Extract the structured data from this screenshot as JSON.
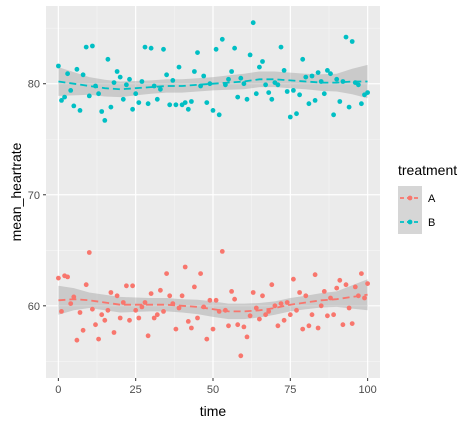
{
  "chart_data": {
    "type": "scatter",
    "title": "",
    "xlabel": "time",
    "ylabel": "mean_heartrate",
    "xlim": [
      -4,
      104
    ],
    "ylim": [
      53.5,
      87
    ],
    "x_ticks": [
      0,
      25,
      50,
      75,
      100
    ],
    "y_ticks": [
      60,
      70,
      80
    ],
    "grid": true,
    "legend": {
      "title": "treatment",
      "position": "right",
      "entries": [
        {
          "label": "A",
          "color": "#F8766D"
        },
        {
          "label": "B",
          "color": "#00BFC4"
        }
      ]
    },
    "series": [
      {
        "name": "A",
        "color": "#F8766D",
        "points": [
          [
            0,
            62.5
          ],
          [
            1,
            59.5
          ],
          [
            2,
            62.7
          ],
          [
            3,
            62.6
          ],
          [
            4,
            60.2
          ],
          [
            5,
            60.8
          ],
          [
            6,
            56.9
          ],
          [
            7,
            59.4
          ],
          [
            8,
            57.8
          ],
          [
            9,
            61.9
          ],
          [
            10,
            64.8
          ],
          [
            11,
            59.7
          ],
          [
            12,
            58.3
          ],
          [
            13,
            57.0
          ],
          [
            14,
            59.2
          ],
          [
            15,
            58.7
          ],
          [
            16,
            59.6
          ],
          [
            17,
            61.2
          ],
          [
            18,
            57.6
          ],
          [
            19,
            60.9
          ],
          [
            20,
            58.9
          ],
          [
            21,
            60.3
          ],
          [
            22,
            61.8
          ],
          [
            23,
            58.7
          ],
          [
            24,
            61.8
          ],
          [
            25,
            59.6
          ],
          [
            26,
            58.9
          ],
          [
            27,
            59.9
          ],
          [
            28,
            60.3
          ],
          [
            29,
            57.3
          ],
          [
            30,
            61.1
          ],
          [
            31,
            58.9
          ],
          [
            32,
            59.2
          ],
          [
            33,
            61.4
          ],
          [
            34,
            59.5
          ],
          [
            35,
            62.9
          ],
          [
            36,
            60.9
          ],
          [
            37,
            60.2
          ],
          [
            38,
            57.9
          ],
          [
            39,
            59.8
          ],
          [
            40,
            60.9
          ],
          [
            41,
            63.5
          ],
          [
            42,
            58.6
          ],
          [
            43,
            58.0
          ],
          [
            44,
            61.7
          ],
          [
            45,
            58.9
          ],
          [
            46,
            62.9
          ],
          [
            47,
            59.9
          ],
          [
            48,
            57.0
          ],
          [
            49,
            60.5
          ],
          [
            50,
            57.9
          ],
          [
            51,
            60.5
          ],
          [
            52,
            59.5
          ],
          [
            53,
            64.9
          ],
          [
            54,
            59.6
          ],
          [
            55,
            58.2
          ],
          [
            56,
            61.3
          ],
          [
            57,
            60.6
          ],
          [
            58,
            58.3
          ],
          [
            59,
            55.5
          ],
          [
            60,
            58.1
          ],
          [
            61,
            57.2
          ],
          [
            62,
            59.1
          ],
          [
            63,
            61.2
          ],
          [
            64,
            59.8
          ],
          [
            65,
            58.8
          ],
          [
            66,
            60.9
          ],
          [
            67,
            59.2
          ],
          [
            68,
            59.5
          ],
          [
            69,
            61.9
          ],
          [
            70,
            60.0
          ],
          [
            71,
            58.2
          ],
          [
            72,
            60.2
          ],
          [
            73,
            58.7
          ],
          [
            74,
            60.3
          ],
          [
            75,
            59.2
          ],
          [
            76,
            62.4
          ],
          [
            77,
            59.6
          ],
          [
            78,
            61.2
          ],
          [
            79,
            57.9
          ],
          [
            80,
            60.9
          ],
          [
            81,
            58.2
          ],
          [
            82,
            59.2
          ],
          [
            83,
            62.8
          ],
          [
            84,
            58.0
          ],
          [
            85,
            60.0
          ],
          [
            86,
            61.3
          ],
          [
            87,
            59.1
          ],
          [
            88,
            60.7
          ],
          [
            89,
            59.2
          ],
          [
            90,
            61.6
          ],
          [
            91,
            62.3
          ],
          [
            92,
            58.3
          ],
          [
            93,
            61.9
          ],
          [
            94,
            59.8
          ],
          [
            95,
            58.4
          ],
          [
            96,
            61.7
          ],
          [
            97,
            60.9
          ],
          [
            98,
            62.9
          ],
          [
            99,
            60.7
          ],
          [
            100,
            62.0
          ]
        ],
        "trend": [
          [
            0,
            60.5
          ],
          [
            5,
            60.6
          ],
          [
            10,
            60.5
          ],
          [
            15,
            60.3
          ],
          [
            20,
            60.1
          ],
          [
            25,
            60.1
          ],
          [
            30,
            60.1
          ],
          [
            35,
            60.1
          ],
          [
            40,
            60.0
          ],
          [
            45,
            59.9
          ],
          [
            50,
            59.7
          ],
          [
            55,
            59.5
          ],
          [
            60,
            59.5
          ],
          [
            65,
            59.6
          ],
          [
            70,
            59.8
          ],
          [
            75,
            60.1
          ],
          [
            80,
            60.3
          ],
          [
            85,
            60.5
          ],
          [
            90,
            60.6
          ],
          [
            95,
            60.8
          ],
          [
            100,
            61.0
          ]
        ],
        "band_halfwidth": [
          [
            0,
            1.3
          ],
          [
            10,
            0.7
          ],
          [
            20,
            0.7
          ],
          [
            30,
            0.6
          ],
          [
            40,
            0.6
          ],
          [
            50,
            0.7
          ],
          [
            60,
            0.7
          ],
          [
            70,
            0.6
          ],
          [
            80,
            0.6
          ],
          [
            90,
            0.7
          ],
          [
            100,
            1.4
          ]
        ]
      },
      {
        "name": "B",
        "color": "#00BFC4",
        "points": [
          [
            0,
            81.6
          ],
          [
            1,
            78.5
          ],
          [
            2,
            78.8
          ],
          [
            3,
            80.9
          ],
          [
            4,
            79.4
          ],
          [
            5,
            78.0
          ],
          [
            6,
            81.3
          ],
          [
            7,
            77.6
          ],
          [
            8,
            80.8
          ],
          [
            9,
            83.3
          ],
          [
            10,
            78.9
          ],
          [
            11,
            83.4
          ],
          [
            12,
            79.8
          ],
          [
            13,
            79.1
          ],
          [
            14,
            77.5
          ],
          [
            15,
            76.7
          ],
          [
            16,
            82.2
          ],
          [
            17,
            77.9
          ],
          [
            18,
            80.1
          ],
          [
            19,
            81.1
          ],
          [
            20,
            80.6
          ],
          [
            21,
            78.6
          ],
          [
            22,
            79.9
          ],
          [
            23,
            80.4
          ],
          [
            24,
            77.7
          ],
          [
            25,
            79.1
          ],
          [
            26,
            78.3
          ],
          [
            27,
            80.2
          ],
          [
            28,
            83.3
          ],
          [
            29,
            78.2
          ],
          [
            30,
            83.2
          ],
          [
            31,
            79.8
          ],
          [
            32,
            78.6
          ],
          [
            33,
            79.5
          ],
          [
            34,
            83.1
          ],
          [
            35,
            80.8
          ],
          [
            36,
            78.1
          ],
          [
            37,
            80.3
          ],
          [
            38,
            78.1
          ],
          [
            39,
            81.5
          ],
          [
            40,
            78.1
          ],
          [
            41,
            78.3
          ],
          [
            42,
            77.7
          ],
          [
            43,
            78.4
          ],
          [
            44,
            81.1
          ],
          [
            45,
            82.8
          ],
          [
            46,
            79.8
          ],
          [
            47,
            80.7
          ],
          [
            48,
            78.3
          ],
          [
            49,
            80.0
          ],
          [
            50,
            77.6
          ],
          [
            51,
            83.1
          ],
          [
            52,
            77.2
          ],
          [
            53,
            84.0
          ],
          [
            54,
            79.9
          ],
          [
            55,
            80.4
          ],
          [
            56,
            81.1
          ],
          [
            57,
            83.2
          ],
          [
            58,
            78.8
          ],
          [
            59,
            80.5
          ],
          [
            60,
            80.0
          ],
          [
            61,
            78.6
          ],
          [
            62,
            82.6
          ],
          [
            63,
            85.5
          ],
          [
            64,
            79.1
          ],
          [
            65,
            81.5
          ],
          [
            66,
            82.0
          ],
          [
            67,
            79.9
          ],
          [
            68,
            79.2
          ],
          [
            69,
            78.6
          ],
          [
            70,
            80.1
          ],
          [
            71,
            79.9
          ],
          [
            72,
            83.3
          ],
          [
            73,
            81.2
          ],
          [
            74,
            79.3
          ],
          [
            75,
            77.0
          ],
          [
            76,
            79.4
          ],
          [
            77,
            77.3
          ],
          [
            78,
            79.0
          ],
          [
            79,
            82.2
          ],
          [
            80,
            80.6
          ],
          [
            81,
            78.2
          ],
          [
            82,
            80.7
          ],
          [
            83,
            78.5
          ],
          [
            84,
            81.0
          ],
          [
            85,
            80.2
          ],
          [
            86,
            79.1
          ],
          [
            87,
            81.2
          ],
          [
            88,
            80.9
          ],
          [
            89,
            77.2
          ],
          [
            90,
            80.4
          ],
          [
            91,
            78.4
          ],
          [
            92,
            80.2
          ],
          [
            93,
            84.2
          ],
          [
            94,
            77.9
          ],
          [
            95,
            83.8
          ],
          [
            96,
            80.1
          ],
          [
            97,
            79.9
          ],
          [
            98,
            78.2
          ],
          [
            99,
            79.0
          ],
          [
            100,
            79.2
          ]
        ],
        "trend": [
          [
            0,
            80.2
          ],
          [
            5,
            80.0
          ],
          [
            10,
            79.8
          ],
          [
            15,
            79.6
          ],
          [
            20,
            79.5
          ],
          [
            25,
            79.6
          ],
          [
            30,
            79.7
          ],
          [
            35,
            79.8
          ],
          [
            40,
            79.8
          ],
          [
            45,
            79.9
          ],
          [
            50,
            80.0
          ],
          [
            55,
            80.1
          ],
          [
            60,
            80.2
          ],
          [
            65,
            80.4
          ],
          [
            70,
            80.4
          ],
          [
            75,
            80.3
          ],
          [
            80,
            80.2
          ],
          [
            85,
            80.1
          ],
          [
            90,
            80.1
          ],
          [
            95,
            80.2
          ],
          [
            100,
            80.2
          ]
        ],
        "band_halfwidth": [
          [
            0,
            1.3
          ],
          [
            10,
            0.8
          ],
          [
            20,
            0.7
          ],
          [
            30,
            0.6
          ],
          [
            40,
            0.6
          ],
          [
            50,
            0.6
          ],
          [
            60,
            0.7
          ],
          [
            70,
            0.7
          ],
          [
            80,
            0.7
          ],
          [
            90,
            0.8
          ],
          [
            100,
            1.5
          ]
        ]
      }
    ]
  }
}
